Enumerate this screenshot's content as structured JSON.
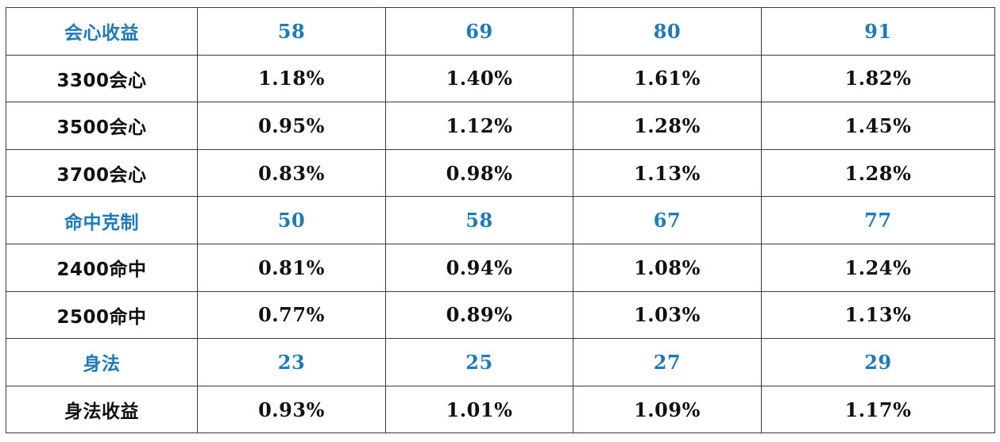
{
  "table": {
    "rows": [
      {
        "type": "section",
        "cells": [
          "会心收益",
          "58",
          "69",
          "80",
          "91"
        ]
      },
      {
        "type": "data",
        "cells": [
          "3300会心",
          "1.18%",
          "1.40%",
          "1.61%",
          "1.82%"
        ]
      },
      {
        "type": "data",
        "cells": [
          "3500会心",
          "0.95%",
          "1.12%",
          "1.28%",
          "1.45%"
        ]
      },
      {
        "type": "data",
        "cells": [
          "3700会心",
          "0.83%",
          "0.98%",
          "1.13%",
          "1.28%"
        ]
      },
      {
        "type": "section",
        "cells": [
          "命中克制",
          "50",
          "58",
          "67",
          "77"
        ]
      },
      {
        "type": "data",
        "cells": [
          "2400命中",
          "0.81%",
          "0.94%",
          "1.08%",
          "1.24%"
        ]
      },
      {
        "type": "data",
        "cells": [
          "2500命中",
          "0.77%",
          "0.89%",
          "1.03%",
          "1.13%"
        ]
      },
      {
        "type": "section",
        "cells": [
          "身法",
          "23",
          "25",
          "27",
          "29"
        ]
      },
      {
        "type": "data",
        "cells": [
          "身法收益",
          "0.93%",
          "1.01%",
          "1.09%",
          "1.17%"
        ]
      }
    ]
  },
  "colors": {
    "section_text": "#1f7ab8",
    "data_text": "#111111",
    "border": "#3a3a3a",
    "background": "#ffffff"
  }
}
